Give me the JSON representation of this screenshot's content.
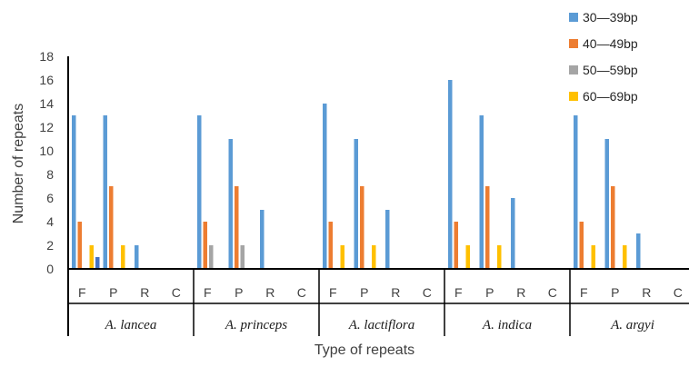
{
  "chart_data": {
    "type": "bar",
    "xlabel": "Type of repeats",
    "ylabel": "Number of repeats",
    "ylim": [
      0,
      18
    ],
    "yticks": [
      0,
      2,
      4,
      6,
      8,
      10,
      12,
      14,
      16,
      18
    ],
    "grid": false,
    "legend_position": "top-right",
    "groups": [
      "A. lancea",
      "A. princeps",
      "A. lactiflora",
      "A. indica",
      "A. argyi"
    ],
    "categories": [
      "F",
      "P",
      "R",
      "C"
    ],
    "series": [
      {
        "name": "30—39bp",
        "color": "#5b9bd5",
        "values": [
          [
            13,
            13,
            2,
            0
          ],
          [
            13,
            11,
            5,
            0
          ],
          [
            14,
            11,
            5,
            0
          ],
          [
            16,
            13,
            6,
            0
          ],
          [
            13,
            11,
            3,
            0
          ]
        ]
      },
      {
        "name": "40—49bp",
        "color": "#ed7d31",
        "values": [
          [
            4,
            7,
            0,
            0
          ],
          [
            4,
            7,
            0,
            0
          ],
          [
            4,
            7,
            0,
            0
          ],
          [
            4,
            7,
            0,
            0
          ],
          [
            4,
            7,
            0,
            0
          ]
        ]
      },
      {
        "name": "50—59bp",
        "color": "#a5a5a5",
        "values": [
          [
            0,
            0,
            0,
            0
          ],
          [
            2,
            2,
            0,
            0
          ],
          [
            0,
            0,
            0,
            0
          ],
          [
            0,
            0,
            0,
            0
          ],
          [
            0,
            0,
            0,
            0
          ]
        ]
      },
      {
        "name": "60—69bp",
        "color": "#ffc000",
        "values": [
          [
            2,
            2,
            0,
            0
          ],
          [
            0,
            0,
            0,
            0
          ],
          [
            2,
            2,
            0,
            0
          ],
          [
            2,
            2,
            0,
            0
          ],
          [
            2,
            2,
            0,
            0
          ]
        ]
      }
    ],
    "extra_bars": [
      {
        "group": "A. lancea",
        "category": "F",
        "value": 1,
        "color": "#4472c4"
      }
    ]
  }
}
